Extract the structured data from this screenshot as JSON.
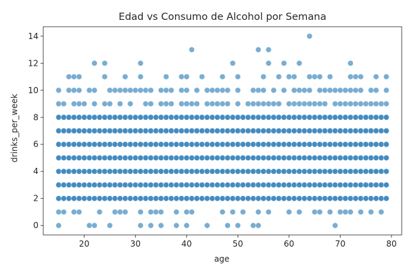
{
  "chart_data": {
    "type": "scatter",
    "title": "Edad vs Consumo de Alcohol por Semana",
    "xlabel": "age",
    "ylabel": "drinks_per_week",
    "xlim": [
      12,
      82
    ],
    "ylim": [
      -0.7,
      14.7
    ],
    "xticks": [
      20,
      30,
      40,
      50,
      60,
      70,
      80
    ],
    "yticks": [
      0,
      2,
      4,
      6,
      8,
      10,
      12,
      14
    ],
    "point_color": "#1f77b4",
    "point_alpha": 0.6,
    "grid": false,
    "legend": "none",
    "x_range_dense": [
      15,
      79
    ],
    "dense_levels": [
      2,
      3,
      4,
      5,
      6,
      7,
      8
    ],
    "sparse_points": [
      [
        15,
        0
      ],
      [
        21,
        0
      ],
      [
        22,
        0
      ],
      [
        25,
        0
      ],
      [
        31,
        0
      ],
      [
        33,
        0
      ],
      [
        35,
        0
      ],
      [
        38,
        0
      ],
      [
        40,
        0
      ],
      [
        44,
        0
      ],
      [
        48,
        0
      ],
      [
        50,
        0
      ],
      [
        53,
        0
      ],
      [
        54,
        0
      ],
      [
        69,
        0
      ],
      [
        15,
        1
      ],
      [
        16,
        1
      ],
      [
        18,
        1
      ],
      [
        19,
        1
      ],
      [
        23,
        1
      ],
      [
        26,
        1
      ],
      [
        27,
        1
      ],
      [
        28,
        1
      ],
      [
        31,
        1
      ],
      [
        33,
        1
      ],
      [
        34,
        1
      ],
      [
        35,
        1
      ],
      [
        38,
        1
      ],
      [
        40,
        1
      ],
      [
        41,
        1
      ],
      [
        47,
        1
      ],
      [
        49,
        1
      ],
      [
        51,
        1
      ],
      [
        54,
        1
      ],
      [
        56,
        1
      ],
      [
        60,
        1
      ],
      [
        62,
        1
      ],
      [
        65,
        1
      ],
      [
        66,
        1
      ],
      [
        68,
        1
      ],
      [
        70,
        1
      ],
      [
        71,
        1
      ],
      [
        72,
        1
      ],
      [
        74,
        1
      ],
      [
        76,
        1
      ],
      [
        78,
        1
      ],
      [
        15,
        9
      ],
      [
        16,
        9
      ],
      [
        18,
        9
      ],
      [
        19,
        9
      ],
      [
        20,
        9
      ],
      [
        22,
        9
      ],
      [
        24,
        9
      ],
      [
        25,
        9
      ],
      [
        27,
        9
      ],
      [
        29,
        9
      ],
      [
        32,
        9
      ],
      [
        33,
        9
      ],
      [
        35,
        9
      ],
      [
        36,
        9
      ],
      [
        37,
        9
      ],
      [
        39,
        9
      ],
      [
        40,
        9
      ],
      [
        41,
        9
      ],
      [
        42,
        9
      ],
      [
        44,
        9
      ],
      [
        45,
        9
      ],
      [
        46,
        9
      ],
      [
        47,
        9
      ],
      [
        48,
        9
      ],
      [
        50,
        9
      ],
      [
        52,
        9
      ],
      [
        53,
        9
      ],
      [
        54,
        9
      ],
      [
        55,
        9
      ],
      [
        56,
        9
      ],
      [
        57,
        9
      ],
      [
        58,
        9
      ],
      [
        60,
        9
      ],
      [
        61,
        9
      ],
      [
        62,
        9
      ],
      [
        63,
        9
      ],
      [
        64,
        9
      ],
      [
        65,
        9
      ],
      [
        66,
        9
      ],
      [
        67,
        9
      ],
      [
        69,
        9
      ],
      [
        70,
        9
      ],
      [
        71,
        9
      ],
      [
        72,
        9
      ],
      [
        73,
        9
      ],
      [
        74,
        9
      ],
      [
        75,
        9
      ],
      [
        76,
        9
      ],
      [
        77,
        9
      ],
      [
        78,
        9
      ],
      [
        79,
        9
      ],
      [
        15,
        10
      ],
      [
        17,
        10
      ],
      [
        18,
        10
      ],
      [
        19,
        10
      ],
      [
        21,
        10
      ],
      [
        22,
        10
      ],
      [
        25,
        10
      ],
      [
        26,
        10
      ],
      [
        27,
        10
      ],
      [
        28,
        10
      ],
      [
        29,
        10
      ],
      [
        30,
        10
      ],
      [
        31,
        10
      ],
      [
        32,
        10
      ],
      [
        33,
        10
      ],
      [
        35,
        10
      ],
      [
        36,
        10
      ],
      [
        37,
        10
      ],
      [
        39,
        10
      ],
      [
        40,
        10
      ],
      [
        42,
        10
      ],
      [
        44,
        10
      ],
      [
        45,
        10
      ],
      [
        46,
        10
      ],
      [
        47,
        10
      ],
      [
        48,
        10
      ],
      [
        50,
        10
      ],
      [
        53,
        10
      ],
      [
        54,
        10
      ],
      [
        55,
        10
      ],
      [
        57,
        10
      ],
      [
        59,
        10
      ],
      [
        61,
        10
      ],
      [
        62,
        10
      ],
      [
        63,
        10
      ],
      [
        64,
        10
      ],
      [
        66,
        10
      ],
      [
        67,
        10
      ],
      [
        68,
        10
      ],
      [
        69,
        10
      ],
      [
        70,
        10
      ],
      [
        71,
        10
      ],
      [
        72,
        10
      ],
      [
        73,
        10
      ],
      [
        74,
        10
      ],
      [
        76,
        10
      ],
      [
        77,
        10
      ],
      [
        79,
        10
      ],
      [
        17,
        11
      ],
      [
        18,
        11
      ],
      [
        19,
        11
      ],
      [
        24,
        11
      ],
      [
        28,
        11
      ],
      [
        31,
        11
      ],
      [
        36,
        11
      ],
      [
        39,
        11
      ],
      [
        40,
        11
      ],
      [
        43,
        11
      ],
      [
        47,
        11
      ],
      [
        50,
        11
      ],
      [
        55,
        11
      ],
      [
        58,
        11
      ],
      [
        60,
        11
      ],
      [
        61,
        11
      ],
      [
        64,
        11
      ],
      [
        65,
        11
      ],
      [
        66,
        11
      ],
      [
        68,
        11
      ],
      [
        72,
        11
      ],
      [
        73,
        11
      ],
      [
        74,
        11
      ],
      [
        77,
        11
      ],
      [
        79,
        11
      ],
      [
        22,
        12
      ],
      [
        24,
        12
      ],
      [
        31,
        12
      ],
      [
        49,
        12
      ],
      [
        56,
        12
      ],
      [
        59,
        12
      ],
      [
        62,
        12
      ],
      [
        72,
        12
      ],
      [
        41,
        13
      ],
      [
        54,
        13
      ],
      [
        56,
        13
      ],
      [
        64,
        14
      ]
    ]
  }
}
